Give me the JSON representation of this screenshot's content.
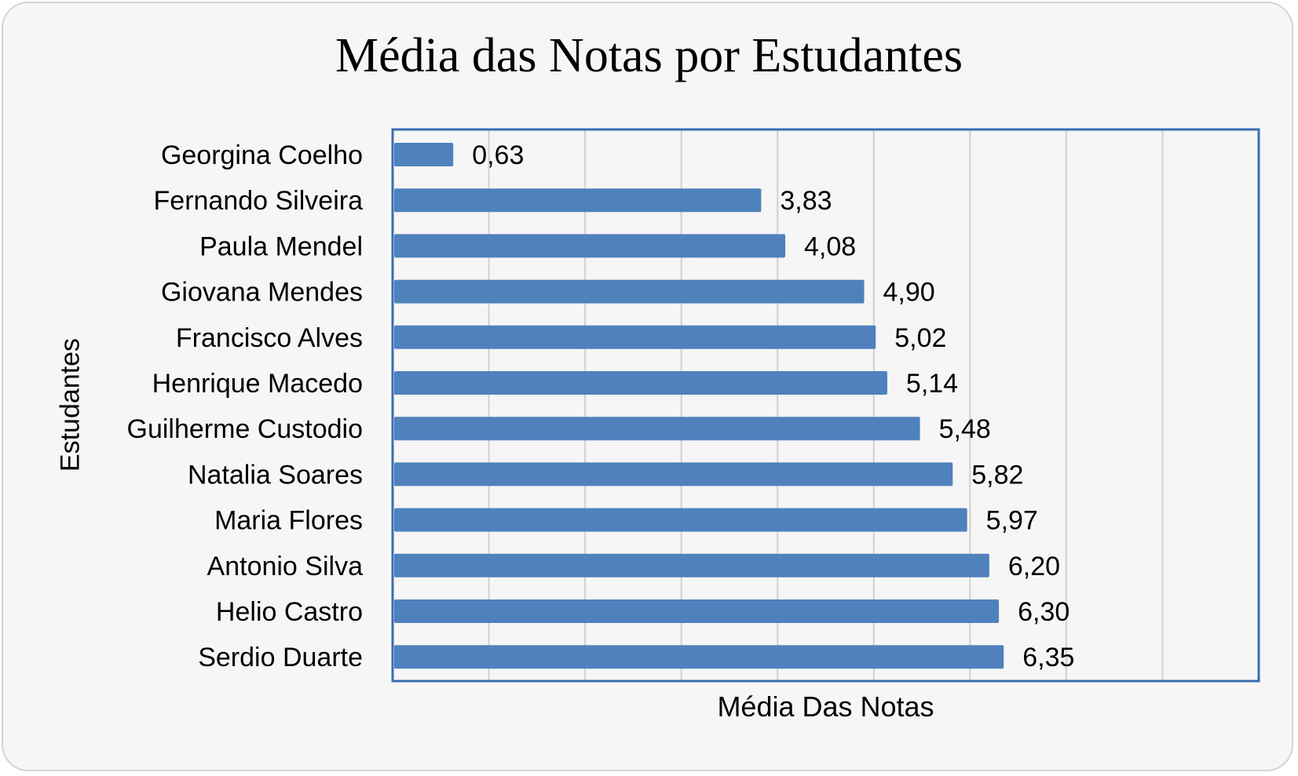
{
  "chart_data": {
    "type": "bar",
    "orientation": "horizontal",
    "title": "Média das Notas por Estudantes",
    "xlabel": "Média Das Notas",
    "ylabel": "Estudantes",
    "categories": [
      "Georgina Coelho",
      "Fernando Silveira",
      "Paula Mendel",
      "Giovana Mendes",
      "Francisco Alves",
      "Henrique Macedo",
      "Guilherme Custodio",
      "Natalia Soares",
      "Maria Flores",
      "Antonio Silva",
      "Helio Castro",
      "Serdio Duarte"
    ],
    "values": [
      0.63,
      3.83,
      4.08,
      4.9,
      5.02,
      5.14,
      5.48,
      5.82,
      5.97,
      6.2,
      6.3,
      6.35
    ],
    "data_labels": [
      "0,63",
      "3,83",
      "4,08",
      "4,90",
      "5,02",
      "5,14",
      "5,48",
      "5,82",
      "5,97",
      "6,20",
      "6,30",
      "6,35"
    ],
    "xlim": [
      0,
      9
    ],
    "x_gridlines": [
      1,
      2,
      3,
      4,
      5,
      6,
      7,
      8
    ],
    "grid": true,
    "legend": "none",
    "colors": {
      "bar": "#4f81bd",
      "plot_border": "#3a6db3",
      "gridline": "#d0d0d0",
      "background": "#f6f6f6",
      "frame_border": "#d4d4d4"
    }
  }
}
